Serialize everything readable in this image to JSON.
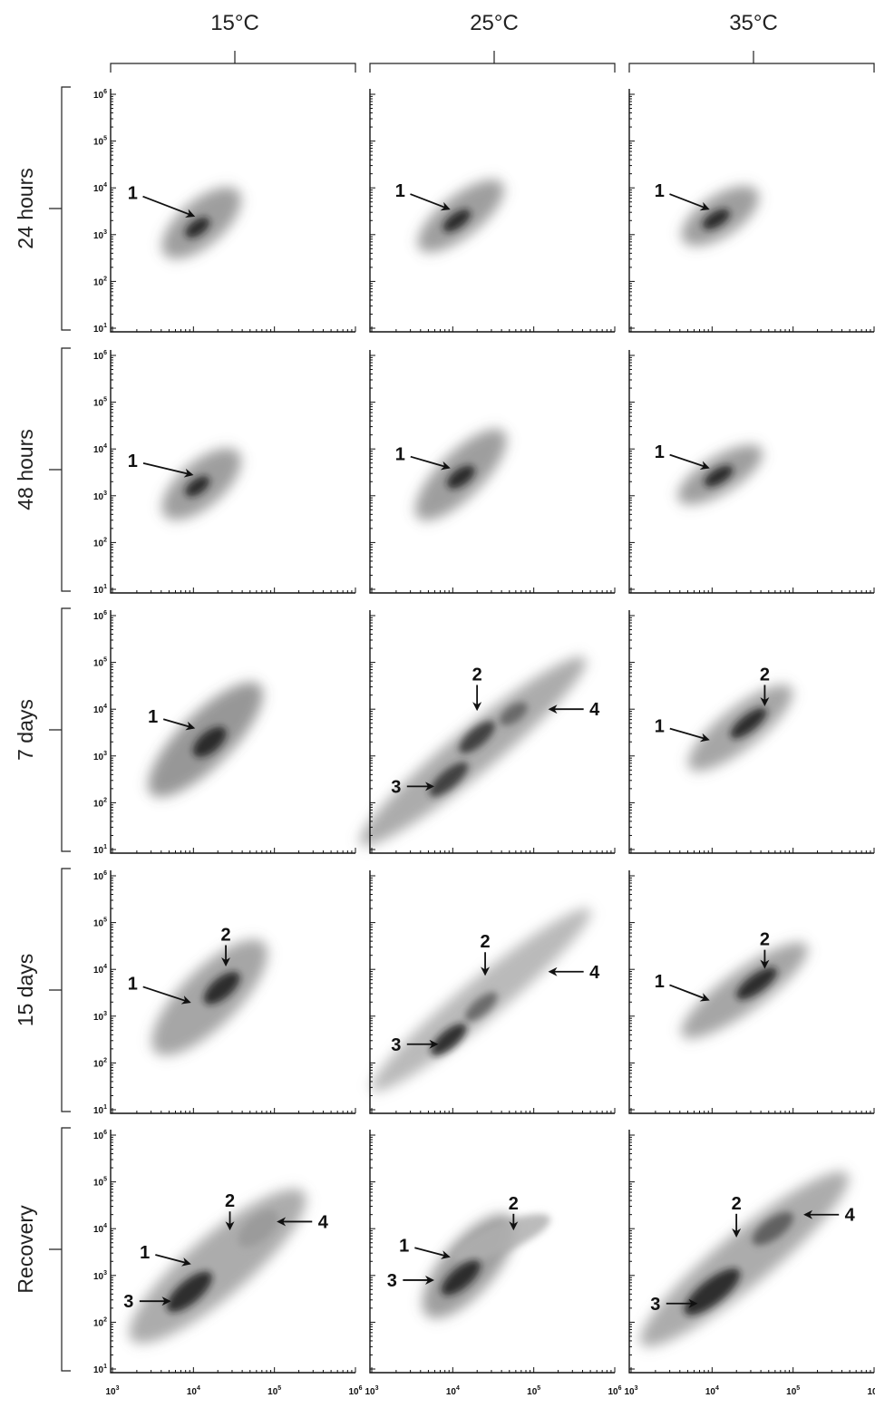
{
  "chart_data": {
    "type": "scatter",
    "description_layout": "grid",
    "columns": [
      "15°C",
      "25°C",
      "35°C"
    ],
    "rows": [
      "24 hours",
      "48 hours",
      "7 days",
      "15 days",
      "Recovery"
    ],
    "x_ticks": [
      "10^3",
      "10^4",
      "10^5",
      "10^6"
    ],
    "y_ticks": [
      "10^1",
      "10^2",
      "10^3",
      "10^4",
      "10^5",
      "10^6"
    ],
    "x_log_range": [
      3,
      6
    ],
    "y_log_range": [
      1,
      6
    ],
    "panels": [
      [
        {
          "blobs": [
            {
              "lx": 4.1,
              "ly": 3.25,
              "w": 0.55,
              "l": 1.2,
              "a": 0.9,
              "o": 0.7
            },
            {
              "lx": 4.05,
              "ly": 3.15,
              "w": 0.18,
              "l": 0.35,
              "a": 0.8,
              "o": 1.0
            }
          ],
          "labels": [
            {
              "text": "1",
              "tx": 3.25,
              "ty": 3.9,
              "hx": 4.0,
              "hy": 3.4
            }
          ]
        },
        {
          "blobs": [
            {
              "lx": 4.1,
              "ly": 3.25,
              "w": 0.55,
              "l": 1.2,
              "a": 0.9,
              "o": 0.7
            },
            {
              "lx": 4.05,
              "ly": 3.2,
              "w": 0.18,
              "l": 0.35,
              "a": 0.8,
              "o": 1.0
            }
          ],
          "labels": [
            {
              "text": "1",
              "tx": 3.25,
              "ty": 3.75,
              "hx": 3.98,
              "hy": 3.45
            }
          ]
        },
        {
          "blobs": [
            {
              "lx": 4.15,
              "ly": 3.35,
              "w": 0.65,
              "l": 1.9,
              "a": 1.0,
              "o": 0.75
            },
            {
              "lx": 4.2,
              "ly": 3.3,
              "w": 0.25,
              "l": 0.5,
              "a": 0.9,
              "o": 1.0
            }
          ],
          "labels": [
            {
              "text": "1",
              "tx": 3.5,
              "ty": 3.85,
              "hx": 4.0,
              "hy": 3.6
            }
          ]
        },
        {
          "blobs": [
            {
              "lx": 4.2,
              "ly": 3.4,
              "w": 0.7,
              "l": 1.9,
              "a": 1.0,
              "o": 0.65
            },
            {
              "lx": 4.35,
              "ly": 3.6,
              "w": 0.25,
              "l": 0.55,
              "a": 0.9,
              "o": 1.0
            }
          ],
          "labels": [
            {
              "text": "1",
              "tx": 3.25,
              "ty": 3.7,
              "hx": 3.95,
              "hy": 3.3
            },
            {
              "text": "2",
              "tx": 4.4,
              "ty": 4.75,
              "hx": 4.4,
              "hy": 4.1
            }
          ]
        },
        {
          "blobs": [
            {
              "lx": 4.3,
              "ly": 3.2,
              "w": 0.75,
              "l": 2.8,
              "a": 0.9,
              "o": 0.6
            },
            {
              "lx": 3.95,
              "ly": 2.65,
              "w": 0.28,
              "l": 0.7,
              "a": 0.9,
              "o": 1.0
            },
            {
              "lx": 4.8,
              "ly": 4.0,
              "w": 0.3,
              "l": 0.6,
              "a": 0.9,
              "o": 0.45
            }
          ],
          "labels": [
            {
              "text": "1",
              "tx": 3.4,
              "ty": 3.5,
              "hx": 3.95,
              "hy": 3.25
            },
            {
              "text": "2",
              "tx": 4.45,
              "ty": 4.6,
              "hx": 4.45,
              "hy": 4.0
            },
            {
              "text": "3",
              "tx": 3.2,
              "ty": 2.45,
              "hx": 3.7,
              "hy": 2.45
            },
            {
              "text": "4",
              "tx": 5.6,
              "ty": 4.15,
              "hx": 5.05,
              "hy": 4.15
            }
          ]
        }
      ],
      [
        {
          "blobs": [
            {
              "lx": 4.1,
              "ly": 3.4,
              "w": 0.5,
              "l": 1.3,
              "a": 0.85,
              "o": 0.7
            },
            {
              "lx": 4.05,
              "ly": 3.3,
              "w": 0.18,
              "l": 0.4,
              "a": 0.8,
              "o": 1.0
            }
          ],
          "labels": [
            {
              "text": "1",
              "tx": 3.35,
              "ty": 3.95,
              "hx": 3.95,
              "hy": 3.55
            }
          ]
        },
        {
          "blobs": [
            {
              "lx": 4.1,
              "ly": 3.45,
              "w": 0.55,
              "l": 1.5,
              "a": 1.0,
              "o": 0.7
            },
            {
              "lx": 4.1,
              "ly": 3.4,
              "w": 0.2,
              "l": 0.4,
              "a": 0.8,
              "o": 1.0
            }
          ],
          "labels": [
            {
              "text": "1",
              "tx": 3.35,
              "ty": 3.9,
              "hx": 3.95,
              "hy": 3.6
            }
          ]
        },
        {
          "blobs": [
            {
              "lx": 4.25,
              "ly": 3.1,
              "w": 0.55,
              "l": 3.6,
              "a": 0.88,
              "o": 0.6
            },
            {
              "lx": 3.95,
              "ly": 2.5,
              "w": 0.22,
              "l": 0.6,
              "a": 0.9,
              "o": 0.9
            },
            {
              "lx": 4.3,
              "ly": 3.4,
              "w": 0.22,
              "l": 0.55,
              "a": 0.9,
              "o": 0.9
            },
            {
              "lx": 4.75,
              "ly": 3.9,
              "w": 0.2,
              "l": 0.4,
              "a": 0.8,
              "o": 0.7
            }
          ],
          "labels": [
            {
              "text": "2",
              "tx": 4.3,
              "ty": 4.75,
              "hx": 4.3,
              "hy": 4.0
            },
            {
              "text": "3",
              "tx": 3.3,
              "ty": 2.35,
              "hx": 3.75,
              "hy": 2.35
            },
            {
              "text": "4",
              "tx": 5.75,
              "ty": 4.0,
              "hx": 5.2,
              "hy": 4.0
            }
          ]
        },
        {
          "blobs": [
            {
              "lx": 4.35,
              "ly": 3.35,
              "w": 0.5,
              "l": 3.5,
              "a": 0.88,
              "o": 0.5
            },
            {
              "lx": 3.95,
              "ly": 2.5,
              "w": 0.22,
              "l": 0.55,
              "a": 0.9,
              "o": 1.0
            },
            {
              "lx": 4.35,
              "ly": 3.2,
              "w": 0.2,
              "l": 0.5,
              "a": 0.9,
              "o": 0.7
            }
          ],
          "labels": [
            {
              "text": "2",
              "tx": 4.4,
              "ty": 4.6,
              "hx": 4.4,
              "hy": 3.9
            },
            {
              "text": "3",
              "tx": 3.3,
              "ty": 2.4,
              "hx": 3.8,
              "hy": 2.4
            },
            {
              "text": "4",
              "tx": 5.75,
              "ty": 3.95,
              "hx": 5.2,
              "hy": 3.95
            }
          ]
        },
        {
          "blobs": [
            {
              "lx": 4.2,
              "ly": 3.2,
              "w": 0.65,
              "l": 1.6,
              "a": 1.1,
              "o": 0.7
            },
            {
              "lx": 4.6,
              "ly": 3.8,
              "w": 0.35,
              "l": 1.3,
              "a": 0.5,
              "o": 0.35
            },
            {
              "lx": 4.1,
              "ly": 2.95,
              "w": 0.25,
              "l": 0.6,
              "a": 0.9,
              "o": 1.0
            }
          ],
          "labels": [
            {
              "text": "1",
              "tx": 3.4,
              "ty": 3.65,
              "hx": 3.95,
              "hy": 3.4
            },
            {
              "text": "2",
              "tx": 4.75,
              "ty": 4.55,
              "hx": 4.75,
              "hy": 4.0
            },
            {
              "text": "3",
              "tx": 3.25,
              "ty": 2.9,
              "hx": 3.75,
              "hy": 2.9
            }
          ]
        }
      ],
      [
        {
          "blobs": [
            {
              "lx": 4.1,
              "ly": 3.4,
              "w": 0.5,
              "l": 1.1,
              "a": 0.75,
              "o": 0.7
            },
            {
              "lx": 4.05,
              "ly": 3.33,
              "w": 0.18,
              "l": 0.38,
              "a": 0.7,
              "o": 1.0
            }
          ],
          "labels": [
            {
              "text": "1",
              "tx": 3.35,
              "ty": 3.95,
              "hx": 3.95,
              "hy": 3.55
            }
          ]
        },
        {
          "blobs": [
            {
              "lx": 4.1,
              "ly": 3.45,
              "w": 0.45,
              "l": 1.2,
              "a": 0.7,
              "o": 0.7
            },
            {
              "lx": 4.08,
              "ly": 3.42,
              "w": 0.18,
              "l": 0.4,
              "a": 0.7,
              "o": 1.0
            }
          ],
          "labels": [
            {
              "text": "1",
              "tx": 3.35,
              "ty": 3.95,
              "hx": 3.95,
              "hy": 3.6
            }
          ]
        },
        {
          "blobs": [
            {
              "lx": 4.35,
              "ly": 3.6,
              "w": 0.5,
              "l": 1.6,
              "a": 0.85,
              "o": 0.65
            },
            {
              "lx": 4.45,
              "ly": 3.7,
              "w": 0.2,
              "l": 0.55,
              "a": 0.85,
              "o": 1.0
            }
          ],
          "labels": [
            {
              "text": "1",
              "tx": 3.35,
              "ty": 3.65,
              "hx": 3.95,
              "hy": 3.35
            },
            {
              "text": "2",
              "tx": 4.65,
              "ty": 4.75,
              "hx": 4.65,
              "hy": 4.1
            }
          ]
        },
        {
          "blobs": [
            {
              "lx": 4.4,
              "ly": 3.55,
              "w": 0.5,
              "l": 1.9,
              "a": 0.8,
              "o": 0.65
            },
            {
              "lx": 4.55,
              "ly": 3.7,
              "w": 0.22,
              "l": 0.6,
              "a": 0.8,
              "o": 1.0
            }
          ],
          "labels": [
            {
              "text": "1",
              "tx": 3.35,
              "ty": 3.75,
              "hx": 3.95,
              "hy": 3.35
            },
            {
              "text": "2",
              "tx": 4.65,
              "ty": 4.65,
              "hx": 4.65,
              "hy": 4.05
            }
          ]
        },
        {
          "blobs": [
            {
              "lx": 4.4,
              "ly": 3.35,
              "w": 0.65,
              "l": 3.3,
              "a": 0.88,
              "o": 0.6
            },
            {
              "lx": 4.0,
              "ly": 2.65,
              "w": 0.3,
              "l": 0.85,
              "a": 0.85,
              "o": 1.0
            },
            {
              "lx": 4.75,
              "ly": 4.0,
              "w": 0.25,
              "l": 0.6,
              "a": 0.8,
              "o": 0.75
            }
          ],
          "labels": [
            {
              "text": "2",
              "tx": 4.3,
              "ty": 4.55,
              "hx": 4.3,
              "hy": 3.85
            },
            {
              "text": "3",
              "tx": 3.3,
              "ty": 2.4,
              "hx": 3.8,
              "hy": 2.4
            },
            {
              "text": "4",
              "tx": 5.7,
              "ty": 4.3,
              "hx": 5.15,
              "hy": 4.3
            }
          ]
        }
      ]
    ]
  }
}
